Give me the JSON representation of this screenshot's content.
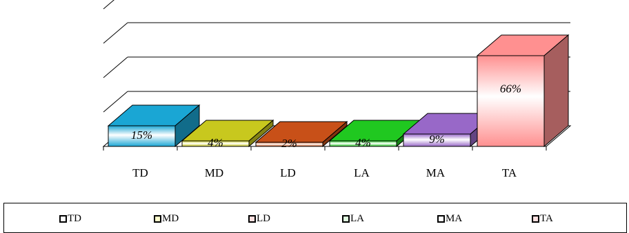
{
  "chart_data": {
    "type": "bar",
    "style": "3d",
    "categories": [
      "TD",
      "MD",
      "LD",
      "LA",
      "MA",
      "TA"
    ],
    "values": [
      15,
      4,
      2,
      4,
      9,
      66
    ],
    "data_labels": [
      "15%",
      "4%",
      "2%",
      "4%",
      "9%",
      "66%"
    ],
    "unit": "%",
    "ylim": [
      0,
      100
    ],
    "grid": true,
    "legend_position": "bottom",
    "colors": [
      "#1aa6d4",
      "#c8c81e",
      "#c85018",
      "#20c820",
      "#9868c8",
      "#ff9090"
    ],
    "legend": [
      {
        "label": "TD",
        "swatch_color": "#ffffff"
      },
      {
        "label": "MD",
        "swatch_color": "#ffffcc"
      },
      {
        "label": "LD",
        "swatch_color": "#ffe0e0"
      },
      {
        "label": "LA",
        "swatch_color": "#e0ffe0"
      },
      {
        "label": "MA",
        "swatch_color": "#ffffff"
      },
      {
        "label": "TA",
        "swatch_color": "#ffe0e0"
      }
    ]
  }
}
